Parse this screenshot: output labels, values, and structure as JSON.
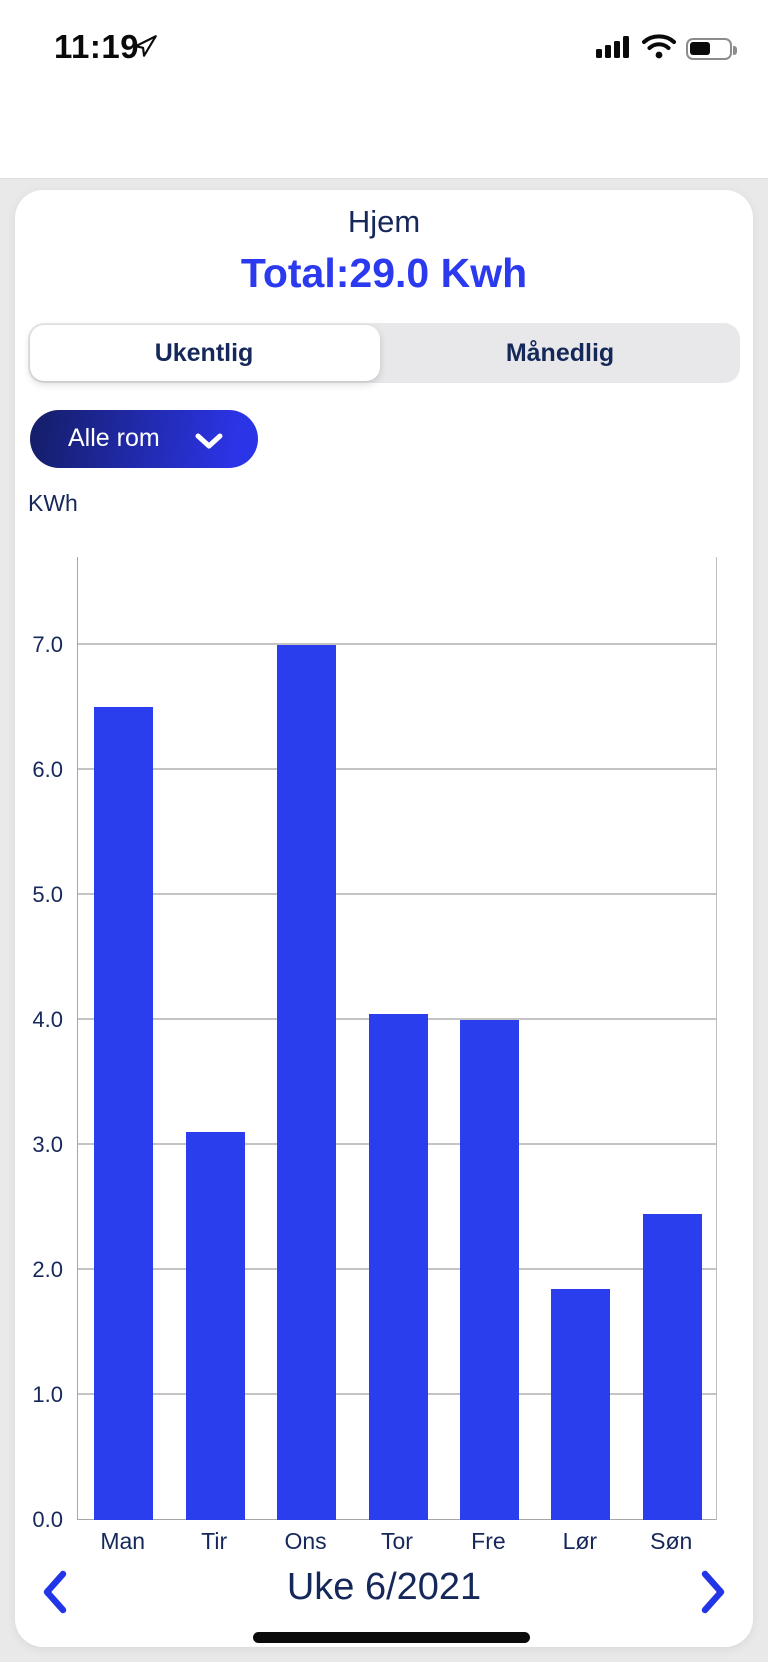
{
  "status_bar": {
    "time": "11:19"
  },
  "card": {
    "title": "Hjem",
    "total": "Total:29.0 Kwh",
    "tabs": [
      {
        "label": "Ukentlig",
        "selected": true
      },
      {
        "label": "Månedlig",
        "selected": false
      }
    ],
    "room_filter": {
      "label": "Alle rom"
    },
    "unit_label": "KWh",
    "period": {
      "label": "Uke 6/2021"
    }
  },
  "chart_data": {
    "type": "bar",
    "title": "Hjem",
    "categories": [
      "Man",
      "Tir",
      "Ons",
      "Tor",
      "Fre",
      "Lør",
      "Søn"
    ],
    "values": [
      6.5,
      3.1,
      7.0,
      4.05,
      4.0,
      1.85,
      2.45
    ],
    "total": "29.0 Kwh",
    "xlabel": "",
    "ylabel": "KWh",
    "ylim": [
      0,
      7.7
    ],
    "yticks": [
      0.0,
      1.0,
      2.0,
      3.0,
      4.0,
      5.0,
      6.0,
      7.0
    ],
    "grid": true,
    "legend": false,
    "bar_color": "#2a3eee",
    "period": "Uke 6/2021"
  },
  "colors": {
    "accent_blue": "#2b3aee",
    "bar_blue": "#2a3eee",
    "navy_text": "#16285a",
    "pill_gradient_start": "#141e66",
    "pill_gradient_end": "#2c34e8",
    "page_background": "#e9e9e9"
  },
  "icons": {
    "back": "chevron-left",
    "room_dropdown": "chevron-down",
    "prev_period": "chevron-left",
    "next_period": "chevron-right"
  }
}
